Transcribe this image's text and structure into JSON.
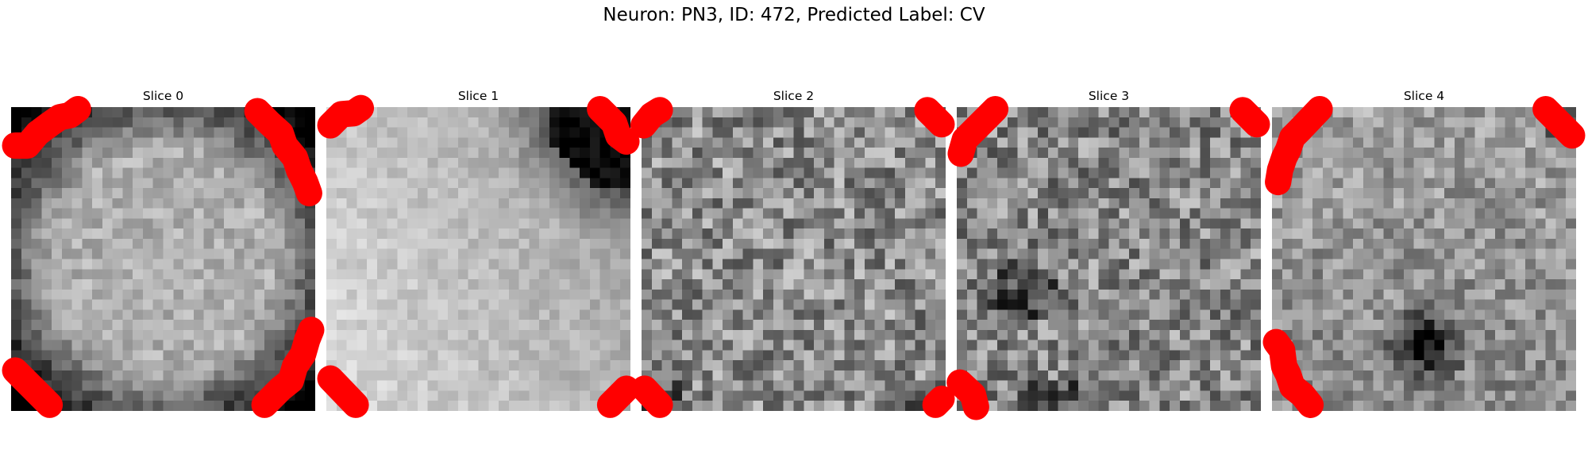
{
  "figure": {
    "title": "Neuron: PN3, ID: 472, Predicted Label: CV"
  },
  "slices": [
    {
      "title": "Slice 0"
    },
    {
      "title": "Slice 1"
    },
    {
      "title": "Slice 2"
    },
    {
      "title": "Slice 3"
    },
    {
      "title": "Slice 4"
    }
  ],
  "colormap": "gray",
  "contour_color": "#ff0000"
}
